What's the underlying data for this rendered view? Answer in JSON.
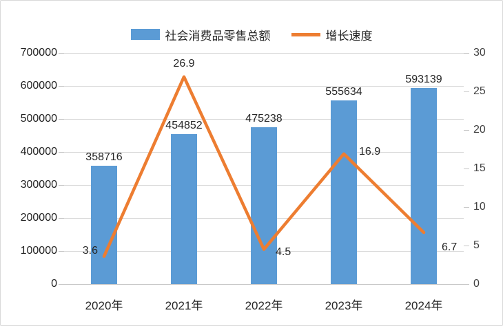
{
  "chart_data": {
    "type": "bar",
    "subtype": "combo-bar-line",
    "title": "",
    "categories": [
      "2020年",
      "2021年",
      "2022年",
      "2023年",
      "2024年"
    ],
    "series": [
      {
        "name": "社会消费品零售总额",
        "type": "bar",
        "axis": "left",
        "values": [
          358716,
          454852,
          475238,
          555634,
          593139
        ],
        "data_labels": [
          "358716",
          "454852",
          "475238",
          "555634",
          "593139"
        ],
        "color": "#5B9BD5"
      },
      {
        "name": "增长速度",
        "type": "line",
        "axis": "right",
        "values": [
          3.6,
          26.9,
          4.5,
          16.9,
          6.7
        ],
        "data_labels": [
          "3.6",
          "26.9",
          "4.5",
          "16.9",
          "6.7"
        ],
        "color": "#ED7D31"
      }
    ],
    "left_axis": {
      "min": 0,
      "max": 700000,
      "step": 100000,
      "ticks": [
        "0",
        "100000",
        "200000",
        "300000",
        "400000",
        "500000",
        "600000",
        "700000"
      ]
    },
    "right_axis": {
      "min": 0,
      "max": 30,
      "step": 5,
      "ticks": [
        "0",
        "5",
        "10",
        "15",
        "20",
        "25",
        "30"
      ]
    },
    "grid": true,
    "legend_position": "top",
    "colors": {
      "gridline": "#d9d9d9",
      "axis_line": "#c6c6c6",
      "label_text": "#262626"
    }
  }
}
